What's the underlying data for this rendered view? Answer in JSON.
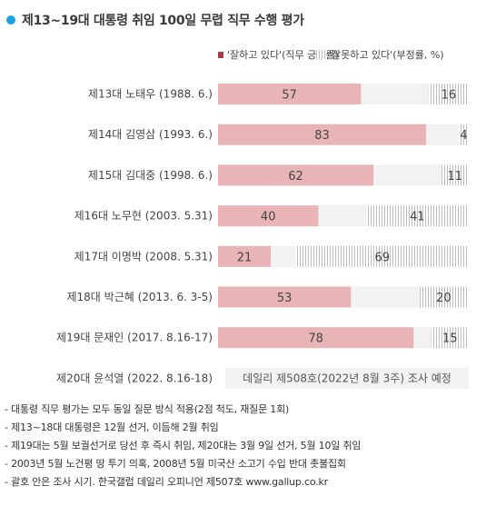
{
  "chart_data": {
    "type": "bar",
    "title": "제13~19대 대통령 취임 100일 무렵 직무 수행 평가",
    "legend": {
      "positive": "'잘하고 있다'(직무 긍정률)",
      "negative": "'잘못하고 있다'(부정률, %)"
    },
    "categories": [
      "제13대 노태우 (1988. 6.)",
      "제14대 김영삼 (1993. 6.)",
      "제15대 김대중 (1998. 6.)",
      "제16대 노무현 (2003. 5.31)",
      "제17대 이명박 (2008. 5.31)",
      "제18대 박근혜 (2013. 6. 3-5)",
      "제19대 문재인 (2017. 8.16-17)"
    ],
    "series": [
      {
        "name": "'잘하고 있다'(직무 긍정률)",
        "values": [
          57,
          83,
          62,
          40,
          21,
          53,
          78
        ]
      },
      {
        "name": "'잘못하고 있다'(부정률, %)",
        "values": [
          16,
          4,
          11,
          41,
          69,
          20,
          15
        ]
      }
    ],
    "xlim": [
      0,
      100
    ],
    "pending": {
      "category": "제20대 윤석열 (2022. 8.16-18)",
      "note": "데일리 제508호(2022년 8월 3주) 조사 예정"
    },
    "colors": {
      "positive": "#e8b4b6",
      "negative_stripe": "#bdbdbd",
      "track": "#f2f2f2",
      "title_dot": "#1aa3e8",
      "legend_pos": "#a83c45"
    }
  },
  "notes": [
    "- 대통령 직무 평가는 모두 동일 질문 방식 적용(2점 척도, 재질문 1회)",
    "- 제13~18대 대통령은 12월 선거, 이듬해 2월 취임",
    "- 제19대는 5월 보궐선거로 당선 후 즉시 취임, 제20대는 3월 9일 선거, 5월 10일 취임",
    "- 2003년 5월 노건평 땅 투기 의혹, 2008년 5월 미국산 소고기 수입 반대 촛불집회",
    "- 괄호 안은 조사 시기. 한국갤럽 데일리 오피니언 제507호 www.gallup.co.kr"
  ]
}
